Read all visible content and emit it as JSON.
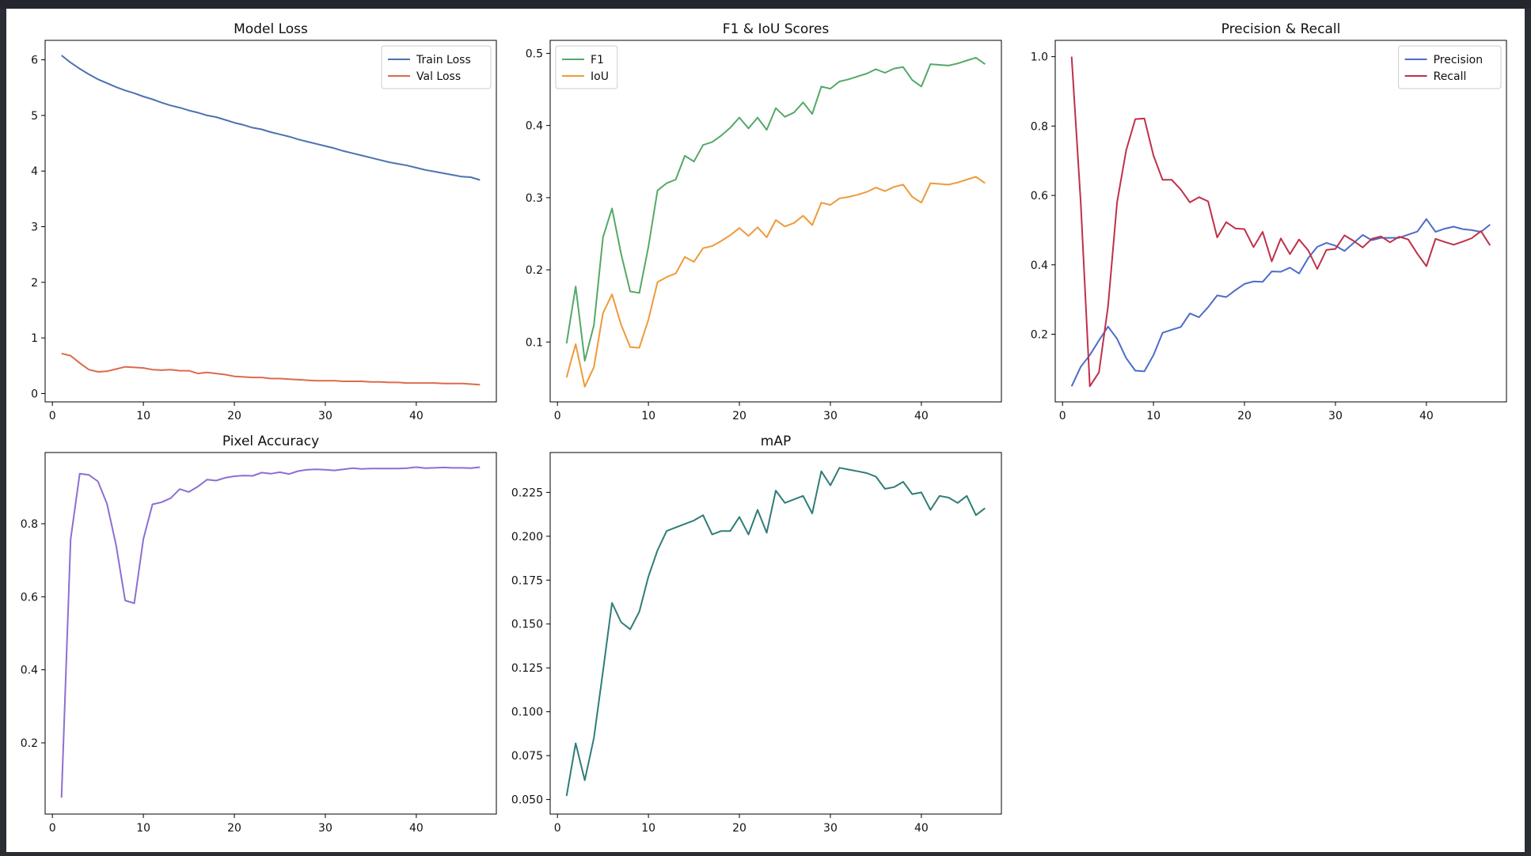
{
  "figure": {
    "background": "#ffffff",
    "frame_color": "#2a2d33"
  },
  "chart_data": [
    {
      "type": "line",
      "title": "Model Loss",
      "xlabel": "",
      "ylabel": "",
      "xlim": [
        -0.8,
        48.8
      ],
      "ylim": [
        -0.15,
        6.35
      ],
      "xticks": [
        0,
        10,
        20,
        30,
        40
      ],
      "yticks": [
        0,
        1,
        2,
        3,
        4,
        5,
        6
      ],
      "ytick_labels": [
        "0",
        "1",
        "2",
        "3",
        "4",
        "5",
        "6"
      ],
      "grid": false,
      "legend": "top-right",
      "x": [
        1,
        2,
        3,
        4,
        5,
        6,
        7,
        8,
        9,
        10,
        11,
        12,
        13,
        14,
        15,
        16,
        17,
        18,
        19,
        20,
        21,
        22,
        23,
        24,
        25,
        26,
        27,
        28,
        29,
        30,
        31,
        32,
        33,
        34,
        35,
        36,
        37,
        38,
        39,
        40,
        41,
        42,
        43,
        44,
        45,
        46,
        47
      ],
      "series": [
        {
          "name": "Train Loss",
          "color": "#4c72b0",
          "values": [
            6.08,
            5.95,
            5.84,
            5.74,
            5.65,
            5.58,
            5.51,
            5.45,
            5.4,
            5.34,
            5.29,
            5.23,
            5.18,
            5.14,
            5.09,
            5.05,
            5.0,
            4.97,
            4.92,
            4.87,
            4.83,
            4.78,
            4.75,
            4.7,
            4.66,
            4.62,
            4.57,
            4.53,
            4.49,
            4.45,
            4.41,
            4.36,
            4.32,
            4.28,
            4.24,
            4.2,
            4.16,
            4.13,
            4.1,
            4.06,
            4.02,
            3.99,
            3.96,
            3.93,
            3.9,
            3.89,
            3.84
          ]
        },
        {
          "name": "Val Loss",
          "color": "#dd6a4c",
          "values": [
            0.72,
            0.68,
            0.55,
            0.43,
            0.39,
            0.4,
            0.44,
            0.48,
            0.47,
            0.46,
            0.43,
            0.42,
            0.43,
            0.41,
            0.41,
            0.36,
            0.38,
            0.36,
            0.34,
            0.31,
            0.3,
            0.29,
            0.29,
            0.27,
            0.27,
            0.26,
            0.25,
            0.24,
            0.23,
            0.23,
            0.23,
            0.22,
            0.22,
            0.22,
            0.21,
            0.21,
            0.2,
            0.2,
            0.19,
            0.19,
            0.19,
            0.19,
            0.18,
            0.18,
            0.18,
            0.17,
            0.16
          ]
        }
      ]
    },
    {
      "type": "line",
      "title": "F1 & IoU Scores",
      "xlabel": "",
      "ylabel": "",
      "xlim": [
        -0.8,
        48.8
      ],
      "ylim": [
        0.017,
        0.518
      ],
      "xticks": [
        0,
        10,
        20,
        30,
        40
      ],
      "yticks": [
        0.1,
        0.2,
        0.3,
        0.4,
        0.5
      ],
      "ytick_labels": [
        "0.1",
        "0.2",
        "0.3",
        "0.4",
        "0.5"
      ],
      "grid": false,
      "legend": "top-left",
      "x": [
        1,
        2,
        3,
        4,
        5,
        6,
        7,
        8,
        9,
        10,
        11,
        12,
        13,
        14,
        15,
        16,
        17,
        18,
        19,
        20,
        21,
        22,
        23,
        24,
        25,
        26,
        27,
        28,
        29,
        30,
        31,
        32,
        33,
        34,
        35,
        36,
        37,
        38,
        39,
        40,
        41,
        42,
        43,
        44,
        45,
        46,
        47
      ],
      "series": [
        {
          "name": "F1",
          "color": "#55a868",
          "values": [
            0.098,
            0.177,
            0.074,
            0.123,
            0.245,
            0.285,
            0.222,
            0.17,
            0.168,
            0.232,
            0.31,
            0.32,
            0.325,
            0.358,
            0.35,
            0.373,
            0.377,
            0.386,
            0.397,
            0.411,
            0.396,
            0.411,
            0.394,
            0.424,
            0.412,
            0.418,
            0.432,
            0.416,
            0.454,
            0.451,
            0.461,
            0.464,
            0.468,
            0.472,
            0.478,
            0.473,
            0.479,
            0.481,
            0.463,
            0.454,
            0.485,
            0.484,
            0.483,
            0.486,
            0.49,
            0.494,
            0.485
          ]
        },
        {
          "name": "IoU",
          "color": "#ee9a3a",
          "values": [
            0.051,
            0.097,
            0.038,
            0.065,
            0.14,
            0.166,
            0.124,
            0.093,
            0.092,
            0.131,
            0.183,
            0.19,
            0.195,
            0.218,
            0.211,
            0.23,
            0.233,
            0.24,
            0.248,
            0.258,
            0.247,
            0.259,
            0.245,
            0.269,
            0.26,
            0.265,
            0.275,
            0.262,
            0.293,
            0.29,
            0.299,
            0.301,
            0.304,
            0.308,
            0.314,
            0.309,
            0.315,
            0.318,
            0.301,
            0.293,
            0.32,
            0.319,
            0.318,
            0.321,
            0.325,
            0.329,
            0.32
          ]
        }
      ]
    },
    {
      "type": "line",
      "title": "Precision & Recall",
      "xlabel": "",
      "ylabel": "",
      "xlim": [
        -0.8,
        48.8
      ],
      "ylim": [
        0.005,
        1.047
      ],
      "xticks": [
        0,
        10,
        20,
        30,
        40
      ],
      "yticks": [
        0.2,
        0.4,
        0.6,
        0.8,
        1.0
      ],
      "ytick_labels": [
        "0.2",
        "0.4",
        "0.6",
        "0.8",
        "1.0"
      ],
      "grid": false,
      "legend": "top-right",
      "x": [
        1,
        2,
        3,
        4,
        5,
        6,
        7,
        8,
        9,
        10,
        11,
        12,
        13,
        14,
        15,
        16,
        17,
        18,
        19,
        20,
        21,
        22,
        23,
        24,
        25,
        26,
        27,
        28,
        29,
        30,
        31,
        32,
        33,
        34,
        35,
        36,
        37,
        38,
        39,
        40,
        41,
        42,
        43,
        44,
        45,
        46,
        47
      ],
      "series": [
        {
          "name": "Precision",
          "color": "#4c6cc9",
          "values": [
            0.05,
            0.106,
            0.14,
            0.182,
            0.222,
            0.187,
            0.131,
            0.095,
            0.093,
            0.14,
            0.204,
            0.213,
            0.221,
            0.26,
            0.249,
            0.278,
            0.312,
            0.307,
            0.327,
            0.345,
            0.352,
            0.351,
            0.381,
            0.38,
            0.392,
            0.375,
            0.419,
            0.452,
            0.463,
            0.455,
            0.44,
            0.463,
            0.486,
            0.471,
            0.478,
            0.478,
            0.478,
            0.487,
            0.496,
            0.532,
            0.495,
            0.504,
            0.51,
            0.503,
            0.5,
            0.495,
            0.516
          ]
        },
        {
          "name": "Recall",
          "color": "#c03048",
          "values": [
            1.0,
            0.58,
            0.05,
            0.09,
            0.28,
            0.58,
            0.73,
            0.82,
            0.822,
            0.715,
            0.645,
            0.645,
            0.617,
            0.58,
            0.595,
            0.583,
            0.479,
            0.523,
            0.505,
            0.503,
            0.451,
            0.495,
            0.41,
            0.476,
            0.431,
            0.473,
            0.442,
            0.388,
            0.443,
            0.446,
            0.485,
            0.469,
            0.45,
            0.475,
            0.482,
            0.465,
            0.481,
            0.473,
            0.432,
            0.396,
            0.475,
            0.466,
            0.458,
            0.467,
            0.477,
            0.497,
            0.456
          ]
        }
      ]
    },
    {
      "type": "line",
      "title": "Pixel Accuracy",
      "xlabel": "",
      "ylabel": "",
      "xlim": [
        -0.8,
        48.8
      ],
      "ylim": [
        0.005,
        0.995
      ],
      "xticks": [
        0,
        10,
        20,
        30,
        40
      ],
      "yticks": [
        0.2,
        0.4,
        0.6,
        0.8
      ],
      "ytick_labels": [
        "0.2",
        "0.4",
        "0.6",
        "0.8"
      ],
      "grid": false,
      "legend": "none",
      "x": [
        1,
        2,
        3,
        4,
        5,
        6,
        7,
        8,
        9,
        10,
        11,
        12,
        13,
        14,
        15,
        16,
        17,
        18,
        19,
        20,
        21,
        22,
        23,
        24,
        25,
        26,
        27,
        28,
        29,
        30,
        31,
        32,
        33,
        34,
        35,
        36,
        37,
        38,
        39,
        40,
        41,
        42,
        43,
        44,
        45,
        46,
        47
      ],
      "series": [
        {
          "name": "",
          "color": "#8c6fd1",
          "values": [
            0.05,
            0.757,
            0.937,
            0.934,
            0.916,
            0.855,
            0.742,
            0.59,
            0.582,
            0.758,
            0.853,
            0.859,
            0.87,
            0.895,
            0.887,
            0.902,
            0.921,
            0.918,
            0.926,
            0.93,
            0.932,
            0.931,
            0.94,
            0.937,
            0.941,
            0.936,
            0.944,
            0.948,
            0.949,
            0.948,
            0.946,
            0.949,
            0.952,
            0.95,
            0.951,
            0.951,
            0.951,
            0.951,
            0.952,
            0.955,
            0.952,
            0.953,
            0.954,
            0.953,
            0.953,
            0.952,
            0.955
          ]
        }
      ]
    },
    {
      "type": "line",
      "title": "mAP",
      "xlabel": "",
      "ylabel": "",
      "xlim": [
        -0.8,
        48.8
      ],
      "ylim": [
        0.0417,
        0.2477
      ],
      "xticks": [
        0,
        10,
        20,
        30,
        40
      ],
      "yticks": [
        0.05,
        0.075,
        0.1,
        0.125,
        0.15,
        0.175,
        0.2,
        0.225
      ],
      "ytick_labels": [
        "0.050",
        "0.075",
        "0.100",
        "0.125",
        "0.150",
        "0.175",
        "0.200",
        "0.225"
      ],
      "grid": false,
      "legend": "none",
      "x": [
        1,
        2,
        3,
        4,
        5,
        6,
        7,
        8,
        9,
        10,
        11,
        12,
        13,
        14,
        15,
        16,
        17,
        18,
        19,
        20,
        21,
        22,
        23,
        24,
        25,
        26,
        27,
        28,
        29,
        30,
        31,
        32,
        33,
        34,
        35,
        36,
        37,
        38,
        39,
        40,
        41,
        42,
        43,
        44,
        45,
        46,
        47
      ],
      "series": [
        {
          "name": "",
          "color": "#2f7d77",
          "values": [
            0.052,
            0.082,
            0.061,
            0.085,
            0.123,
            0.162,
            0.151,
            0.147,
            0.157,
            0.177,
            0.192,
            0.203,
            0.205,
            0.207,
            0.209,
            0.212,
            0.201,
            0.203,
            0.203,
            0.211,
            0.201,
            0.215,
            0.202,
            0.226,
            0.219,
            0.221,
            0.223,
            0.213,
            0.237,
            0.229,
            0.239,
            0.238,
            0.237,
            0.236,
            0.234,
            0.227,
            0.228,
            0.231,
            0.224,
            0.225,
            0.215,
            0.223,
            0.222,
            0.219,
            0.223,
            0.212,
            0.216
          ]
        }
      ]
    }
  ]
}
